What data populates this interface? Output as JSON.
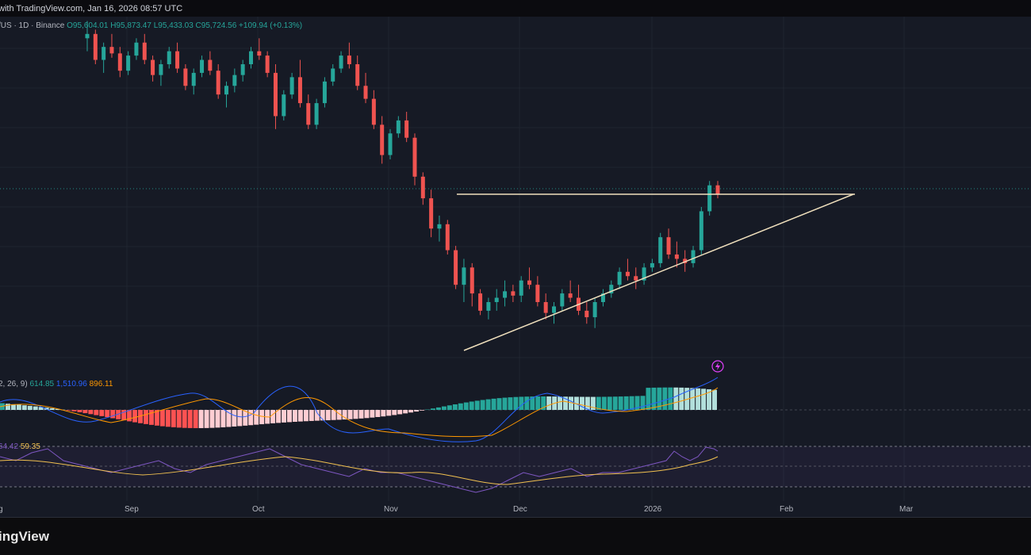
{
  "header": {
    "snapshot_text": "with TradingView.com, Jan 16, 2026 08:57 UTC"
  },
  "legend": {
    "symbol": "/US · 1D · Binance",
    "open": "O95,604.01",
    "high": "H95,873.47",
    "low": "L95,433.03",
    "close": "C95,724.56",
    "change": "+109.94 (+0.13%)"
  },
  "macd_legend": {
    "params": "2, 26, 9)",
    "hist": "614.85",
    "macd": "1,510.96",
    "signal": "896.11"
  },
  "rsi_legend": {
    "rsi": "64.42",
    "ma": "59.35"
  },
  "footer": {
    "brand": "ingView"
  },
  "chart_data": {
    "type": "candlestick",
    "x_axis": {
      "ticks": [
        "g",
        "Sep",
        "Oct",
        "Nov",
        "Dec",
        "2026",
        "Feb",
        "Mar"
      ]
    },
    "candles_ohlc_relative": [
      [
        0.72,
        0.8,
        0.66,
        0.74
      ],
      [
        0.74,
        0.76,
        0.6,
        0.62
      ],
      [
        0.62,
        0.7,
        0.56,
        0.68
      ],
      [
        0.68,
        0.74,
        0.63,
        0.65
      ],
      [
        0.65,
        0.68,
        0.54,
        0.57
      ],
      [
        0.57,
        0.66,
        0.55,
        0.64
      ],
      [
        0.64,
        0.72,
        0.62,
        0.7
      ],
      [
        0.7,
        0.74,
        0.6,
        0.62
      ],
      [
        0.62,
        0.64,
        0.52,
        0.55
      ],
      [
        0.55,
        0.62,
        0.5,
        0.6
      ],
      [
        0.6,
        0.68,
        0.58,
        0.66
      ],
      [
        0.66,
        0.7,
        0.56,
        0.58
      ],
      [
        0.58,
        0.6,
        0.48,
        0.5
      ],
      [
        0.5,
        0.58,
        0.46,
        0.56
      ],
      [
        0.56,
        0.64,
        0.54,
        0.62
      ],
      [
        0.62,
        0.66,
        0.55,
        0.57
      ],
      [
        0.57,
        0.6,
        0.44,
        0.46
      ],
      [
        0.46,
        0.52,
        0.4,
        0.5
      ],
      [
        0.5,
        0.58,
        0.47,
        0.55
      ],
      [
        0.55,
        0.62,
        0.52,
        0.6
      ],
      [
        0.6,
        0.68,
        0.58,
        0.66
      ],
      [
        0.66,
        0.72,
        0.62,
        0.64
      ],
      [
        0.64,
        0.66,
        0.54,
        0.56
      ],
      [
        0.56,
        0.6,
        0.3,
        0.36
      ],
      [
        0.36,
        0.48,
        0.34,
        0.46
      ],
      [
        0.46,
        0.56,
        0.44,
        0.54
      ],
      [
        0.54,
        0.62,
        0.4,
        0.42
      ],
      [
        0.42,
        0.46,
        0.3,
        0.32
      ],
      [
        0.32,
        0.44,
        0.3,
        0.42
      ],
      [
        0.42,
        0.54,
        0.4,
        0.52
      ],
      [
        0.52,
        0.6,
        0.5,
        0.58
      ],
      [
        0.58,
        0.66,
        0.56,
        0.64
      ],
      [
        0.64,
        0.7,
        0.58,
        0.6
      ],
      [
        0.6,
        0.64,
        0.48,
        0.5
      ],
      [
        0.5,
        0.56,
        0.42,
        0.44
      ],
      [
        0.44,
        0.48,
        0.3,
        0.32
      ],
      [
        0.32,
        0.36,
        0.14,
        0.18
      ],
      [
        0.18,
        0.3,
        0.16,
        0.28
      ],
      [
        0.28,
        0.36,
        0.26,
        0.34
      ],
      [
        0.34,
        0.38,
        0.24,
        0.26
      ],
      [
        0.26,
        0.28,
        0.04,
        0.08
      ],
      [
        0.08,
        0.1,
        -0.05,
        -0.02
      ],
      [
        -0.02,
        0.02,
        -0.2,
        -0.16
      ],
      [
        -0.16,
        -0.1,
        -0.22,
        -0.14
      ],
      [
        -0.14,
        -0.12,
        -0.28,
        -0.26
      ],
      [
        -0.26,
        -0.24,
        -0.44,
        -0.42
      ],
      [
        -0.42,
        -0.3,
        -0.5,
        -0.34
      ],
      [
        -0.34,
        -0.32,
        -0.52,
        -0.46
      ],
      [
        -0.46,
        -0.44,
        -0.56,
        -0.54
      ],
      [
        -0.54,
        -0.48,
        -0.58,
        -0.5
      ],
      [
        -0.5,
        -0.44,
        -0.54,
        -0.48
      ],
      [
        -0.48,
        -0.4,
        -0.52,
        -0.45
      ],
      [
        -0.45,
        -0.42,
        -0.5,
        -0.47
      ],
      [
        -0.47,
        -0.38,
        -0.5,
        -0.4
      ],
      [
        -0.4,
        -0.34,
        -0.44,
        -0.42
      ],
      [
        -0.42,
        -0.38,
        -0.52,
        -0.5
      ],
      [
        -0.5,
        -0.46,
        -0.58,
        -0.55
      ],
      [
        -0.55,
        -0.5,
        -0.6,
        -0.52
      ],
      [
        -0.52,
        -0.44,
        -0.54,
        -0.46
      ],
      [
        -0.46,
        -0.4,
        -0.5,
        -0.48
      ],
      [
        -0.48,
        -0.42,
        -0.56,
        -0.54
      ],
      [
        -0.54,
        -0.5,
        -0.6,
        -0.57
      ],
      [
        -0.57,
        -0.48,
        -0.62,
        -0.5
      ],
      [
        -0.5,
        -0.44,
        -0.52,
        -0.46
      ],
      [
        -0.46,
        -0.4,
        -0.48,
        -0.42
      ],
      [
        -0.42,
        -0.34,
        -0.44,
        -0.36
      ],
      [
        -0.36,
        -0.3,
        -0.4,
        -0.38
      ],
      [
        -0.38,
        -0.34,
        -0.44,
        -0.4
      ],
      [
        -0.4,
        -0.32,
        -0.42,
        -0.34
      ],
      [
        -0.34,
        -0.3,
        -0.36,
        -0.32
      ],
      [
        -0.32,
        -0.18,
        -0.34,
        -0.2
      ],
      [
        -0.2,
        -0.16,
        -0.3,
        -0.28
      ],
      [
        -0.28,
        -0.22,
        -0.34,
        -0.3
      ],
      [
        -0.3,
        -0.26,
        -0.36,
        -0.32
      ],
      [
        -0.32,
        -0.24,
        -0.34,
        -0.26
      ],
      [
        -0.26,
        -0.06,
        -0.28,
        -0.08
      ],
      [
        -0.08,
        0.06,
        -0.1,
        0.04
      ],
      [
        0.04,
        0.06,
        -0.02,
        0.0
      ]
    ],
    "resistance_line": "horizontal at top of triangle",
    "support_line": "rising trendline"
  },
  "colors": {
    "up": "#26a69a",
    "down": "#ef5350",
    "trendline": "#f0e0bd",
    "bg": "#161a25"
  }
}
